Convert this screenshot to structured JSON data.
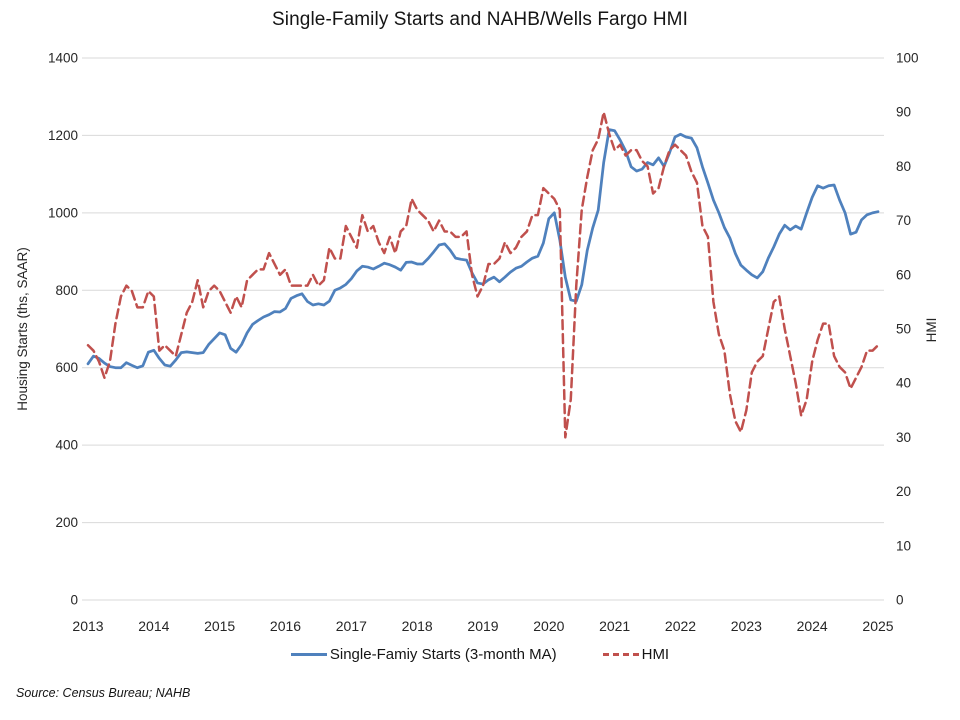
{
  "title": "Single-Family Starts and NAHB/Wells Fargo HMI",
  "source_note": "Source: Census Bureau; NAHB",
  "colors": {
    "starts_line": "#4F81BD",
    "hmi_line": "#C0504D",
    "gridline": "#D9D9D9",
    "text": "#262626"
  },
  "chart_data": {
    "type": "line",
    "title": "Single-Family Starts and NAHB/Wells Fargo HMI",
    "frequency": "monthly",
    "x_start": "2013-01",
    "x_end": "2025-01",
    "x_tick_labels": [
      "2013",
      "2014",
      "2015",
      "2016",
      "2017",
      "2018",
      "2019",
      "2020",
      "2021",
      "2022",
      "2023",
      "2024",
      "2025"
    ],
    "grid": "horizontal",
    "legend_position": "bottom",
    "left_axis": {
      "label": "Housing Starts (ths, SAAR)",
      "min": 0,
      "max": 1400,
      "step": 200,
      "ticks": [
        0,
        200,
        400,
        600,
        800,
        1000,
        1200,
        1400
      ]
    },
    "right_axis": {
      "label": "HMI",
      "min": 0,
      "max": 100,
      "step": 10,
      "ticks": [
        0,
        10,
        20,
        30,
        40,
        50,
        60,
        70,
        80,
        90,
        100
      ]
    },
    "series": [
      {
        "name": "Single-Famiy Starts (3-month MA)",
        "axis": "left",
        "color": "#4F81BD",
        "line_style": "solid",
        "values": [
          610,
          630,
          624,
          612,
          603,
          600,
          600,
          613,
          606,
          600,
          605,
          640,
          645,
          624,
          607,
          604,
          620,
          639,
          641,
          639,
          637,
          639,
          660,
          675,
          690,
          685,
          650,
          640,
          660,
          690,
          712,
          722,
          731,
          737,
          745,
          744,
          753,
          779,
          786,
          791,
          771,
          762,
          765,
          762,
          772,
          800,
          806,
          815,
          830,
          850,
          862,
          860,
          855,
          862,
          870,
          866,
          860,
          852,
          872,
          873,
          868,
          868,
          882,
          899,
          917,
          920,
          904,
          883,
          880,
          878,
          845,
          819,
          816,
          827,
          834,
          822,
          834,
          847,
          857,
          862,
          873,
          883,
          888,
          922,
          985,
          1000,
          930,
          834,
          775,
          772,
          814,
          903,
          961,
          1007,
          1130,
          1215,
          1212,
          1188,
          1160,
          1119,
          1108,
          1113,
          1130,
          1124,
          1142,
          1120,
          1155,
          1196,
          1203,
          1196,
          1193,
          1168,
          1119,
          1077,
          1033,
          1000,
          962,
          935,
          895,
          865,
          852,
          840,
          832,
          848,
          883,
          912,
          945,
          968,
          956,
          966,
          958,
          1000,
          1040,
          1070,
          1064,
          1070,
          1072,
          1033,
          1000,
          945,
          950,
          982,
          995,
          1000,
          1003
        ]
      },
      {
        "name": "HMI",
        "axis": "right",
        "color": "#C0504D",
        "line_style": "dashed",
        "values": [
          47,
          46,
          44,
          41,
          44,
          51,
          56,
          58,
          57,
          54,
          54,
          57,
          56,
          46,
          47,
          46,
          45,
          49,
          53,
          55,
          59,
          54,
          57,
          58,
          57,
          55,
          53,
          56,
          54,
          59,
          60,
          61,
          61,
          64,
          62,
          60,
          61,
          58,
          58,
          58,
          58,
          60,
          58,
          59,
          65,
          63,
          63,
          69,
          67,
          65,
          71,
          68,
          69,
          66,
          64,
          67,
          64,
          68,
          69,
          74,
          72,
          71,
          70,
          68,
          70,
          68,
          68,
          67,
          67,
          68,
          60,
          56,
          58,
          62,
          62,
          63,
          66,
          64,
          65,
          67,
          68,
          71,
          71,
          76,
          75,
          74,
          72,
          30,
          37,
          58,
          72,
          78,
          83,
          85,
          90,
          86,
          83,
          84,
          82,
          83,
          83,
          81,
          80,
          75,
          76,
          80,
          83,
          84,
          83,
          82,
          79,
          77,
          69,
          67,
          55,
          49,
          46,
          38,
          33,
          31,
          35,
          42,
          44,
          45,
          50,
          55,
          56,
          50,
          45,
          40,
          34,
          37,
          44,
          48,
          51,
          51,
          45,
          43,
          42,
          39,
          41,
          43,
          46,
          46,
          47
        ]
      }
    ]
  }
}
